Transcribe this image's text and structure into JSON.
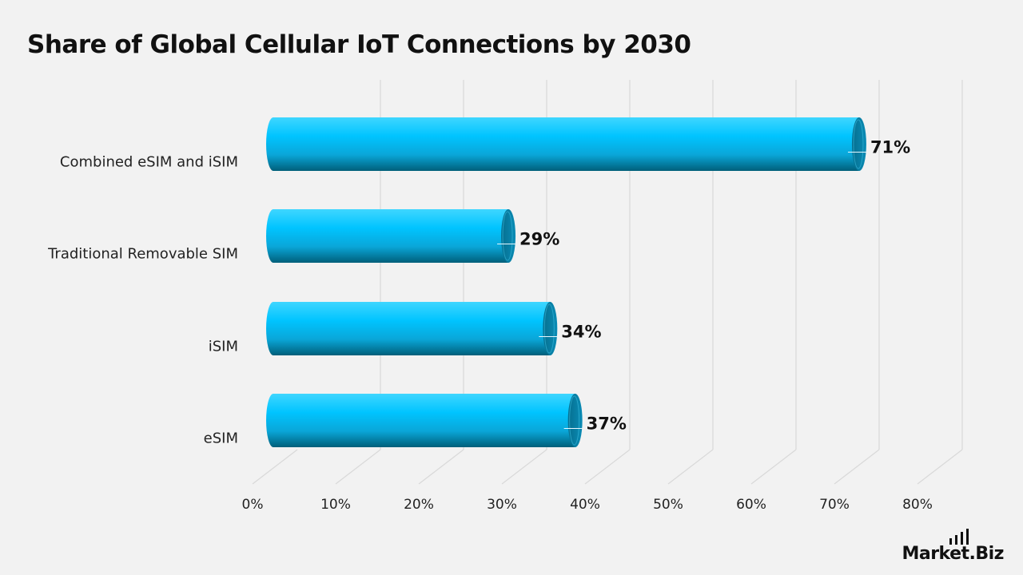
{
  "page": {
    "title": "Share of Global Cellular IoT Connections by 2030",
    "brand": "Market.Biz"
  },
  "colors": {
    "bar_top": "#00c4ff",
    "bar_bottom": "#005f7a",
    "bar_end": "#0a7ea3",
    "grid": "#d9d9d9",
    "background": "#f2f2f2"
  },
  "chart_data": {
    "type": "bar",
    "orientation": "horizontal",
    "title": "Share of Global Cellular IoT Connections by 2030",
    "categories": [
      "Combined eSIM and iSIM",
      "Traditional Removable SIM",
      "iSIM",
      "eSIM"
    ],
    "values": [
      71,
      29,
      34,
      37
    ],
    "value_labels": [
      "71%",
      "29%",
      "34%",
      "37%"
    ],
    "x_ticks": [
      "0%",
      "10%",
      "20%",
      "30%",
      "40%",
      "50%",
      "60%",
      "70%",
      "80%"
    ],
    "xlim": [
      0,
      80
    ],
    "grid": true,
    "legend": "none",
    "style": "3d-cylinder"
  }
}
